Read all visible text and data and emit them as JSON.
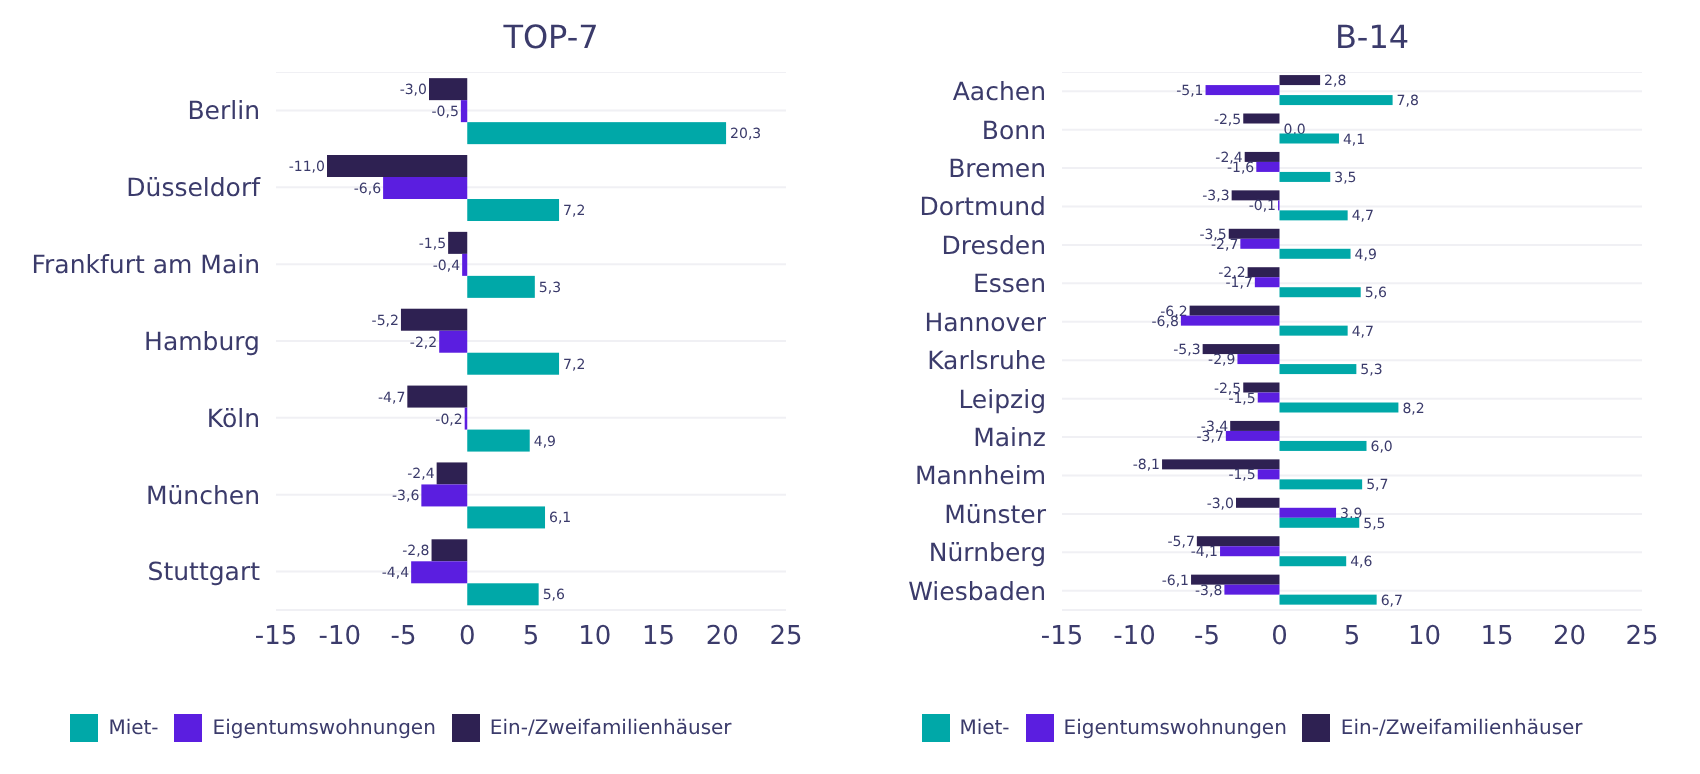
{
  "chart_data": [
    {
      "type": "bar",
      "orientation": "horizontal",
      "title": "TOP-7",
      "categories": [
        "Berlin",
        "Düsseldorf",
        "Frankfurt am Main",
        "Hamburg",
        "Köln",
        "München",
        "Stuttgart"
      ],
      "series": [
        {
          "name": "Miet-",
          "color": "#00a8a8",
          "values": [
            20.3,
            7.2,
            5.3,
            7.2,
            4.9,
            6.1,
            5.6
          ],
          "value_labels": [
            "20,3",
            "7,2",
            "5,3",
            "7,2",
            "4,9",
            "6,1",
            "5,6"
          ]
        },
        {
          "name": "Eigentumswohnungen",
          "color": "#5b1ee0",
          "values": [
            -0.5,
            -6.6,
            -0.4,
            -2.2,
            -0.2,
            -3.6,
            -4.4
          ],
          "value_labels": [
            "-0,5",
            "-6,6",
            "-0,4",
            "-2,2",
            "-0,2",
            "-3,6",
            "-4,4"
          ]
        },
        {
          "name": "Ein-/Zweifamilienhäuser",
          "color": "#2e2152",
          "values": [
            -3.0,
            -11.0,
            -1.5,
            -5.2,
            -4.7,
            -2.4,
            -2.8
          ],
          "value_labels": [
            "-3,0",
            "-11,0",
            "-1,5",
            "-5,2",
            "-4,7",
            "-2,4",
            "-2,8"
          ]
        }
      ],
      "xlim": [
        -15,
        25
      ],
      "xticks": [
        -15,
        -10,
        -5,
        0,
        5,
        10,
        15,
        20,
        25
      ],
      "grid": "y",
      "legend": "bottom"
    },
    {
      "type": "bar",
      "orientation": "horizontal",
      "title": "B-14",
      "categories": [
        "Aachen",
        "Bonn",
        "Bremen",
        "Dortmund",
        "Dresden",
        "Essen",
        "Hannover",
        "Karlsruhe",
        "Leipzig",
        "Mainz",
        "Mannheim",
        "Münster",
        "Nürnberg",
        "Wiesbaden"
      ],
      "series": [
        {
          "name": "Miet-",
          "color": "#00a8a8",
          "values": [
            7.8,
            4.1,
            3.5,
            4.7,
            4.9,
            5.6,
            4.7,
            5.3,
            8.2,
            6.0,
            5.7,
            5.5,
            4.6,
            6.7
          ],
          "value_labels": [
            "7,8",
            "4,1",
            "3,5",
            "4,7",
            "4,9",
            "5,6",
            "4,7",
            "5,3",
            "8,2",
            "6,0",
            "5,7",
            "5,5",
            "4,6",
            "6,7"
          ]
        },
        {
          "name": "Eigentumswohnungen",
          "color": "#5b1ee0",
          "values": [
            -5.1,
            0.0,
            -1.6,
            -0.1,
            -2.7,
            -1.7,
            -6.8,
            -2.9,
            -1.5,
            -3.7,
            -1.5,
            3.9,
            -4.1,
            -3.8
          ],
          "value_labels": [
            "-5,1",
            "0,0",
            "-1,6",
            "-0,1",
            "-2,7",
            "-1,7",
            "-6,8",
            "-2,9",
            "-1,5",
            "-3,7",
            "-1,5",
            "3,9",
            "-4,1",
            "-3,8"
          ]
        },
        {
          "name": "Ein-/Zweifamilienhäuser",
          "color": "#2e2152",
          "values": [
            2.8,
            -2.5,
            -2.4,
            -3.3,
            -3.5,
            -2.2,
            -6.2,
            -5.3,
            -2.5,
            -3.4,
            -8.1,
            -3.0,
            -5.7,
            -6.1
          ],
          "value_labels": [
            "2,8",
            "-2,5",
            "-2,4",
            "-3,3",
            "-3,5",
            "-2,2",
            "-6,2",
            "-5,3",
            "-2,5",
            "-3,4",
            "-8,1",
            "-3,0",
            "-5,7",
            "-6,1"
          ]
        }
      ],
      "xlim": [
        -15,
        25
      ],
      "xticks": [
        -15,
        -10,
        -5,
        0,
        5,
        10,
        15,
        20,
        25
      ],
      "grid": "y",
      "legend": "bottom"
    }
  ]
}
